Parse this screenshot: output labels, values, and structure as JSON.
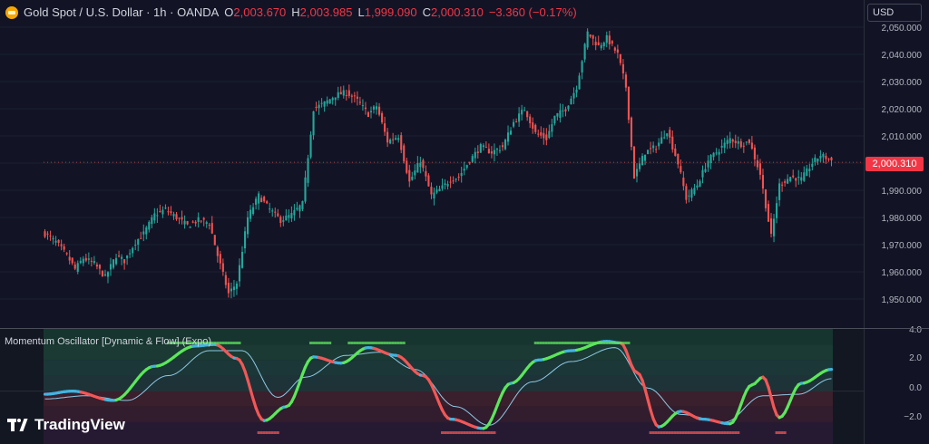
{
  "symbol": {
    "title": "Gold Spot / U.S. Dollar · 1h · OANDA",
    "icon": "gold-coin-icon",
    "ohlc": [
      {
        "k": "O",
        "v": "2,003.670"
      },
      {
        "k": "H",
        "v": "2,003.985"
      },
      {
        "k": "L",
        "v": "1,999.090"
      },
      {
        "k": "C",
        "v": "2,000.310"
      }
    ],
    "change": "−3.360 (−0.17%)"
  },
  "price_axis": {
    "currency": "USD",
    "ticks": [
      "2,050.000",
      "2,040.000",
      "2,030.000",
      "2,020.000",
      "2,010.000",
      "2,000.000",
      "1,990.000",
      "1,980.000",
      "1,970.000",
      "1,960.000",
      "1,950.000"
    ],
    "last_price": "2,000.310"
  },
  "oscillator": {
    "title": "Momentum Oscillator [Dynamic & Flow] (Expo)",
    "ticks": [
      "4.0",
      "2.0",
      "0.0",
      "−2.0"
    ]
  },
  "branding": {
    "name": "TradingView"
  },
  "colors": {
    "up": "#26a69a",
    "down": "#ef5350",
    "osc_up": "#5ce65c",
    "osc_down": "#f25757",
    "osc_mid": "#42b4e0"
  },
  "chart_data": {
    "type": "candlestick",
    "ylim": [
      1945,
      2052
    ],
    "ticks": [
      2050,
      2040,
      2030,
      2020,
      2010,
      2000,
      1990,
      1980,
      1970,
      1960,
      1950
    ],
    "path": [
      [
        0,
        1974
      ],
      [
        4,
        1971
      ],
      [
        8,
        1966
      ],
      [
        11,
        1961
      ],
      [
        14,
        1965
      ],
      [
        18,
        1963
      ],
      [
        22,
        1958
      ],
      [
        26,
        1966
      ],
      [
        29,
        1964
      ],
      [
        33,
        1971
      ],
      [
        36,
        1974
      ],
      [
        40,
        1981
      ],
      [
        44,
        1983
      ],
      [
        48,
        1980
      ],
      [
        52,
        1977
      ],
      [
        56,
        1979
      ],
      [
        60,
        1978
      ],
      [
        63,
        1966
      ],
      [
        67,
        1952
      ],
      [
        70,
        1956
      ],
      [
        74,
        1980
      ],
      [
        78,
        1988
      ],
      [
        82,
        1983
      ],
      [
        86,
        1979
      ],
      [
        90,
        1981
      ],
      [
        94,
        1985
      ],
      [
        98,
        2020
      ],
      [
        102,
        2022
      ],
      [
        106,
        2025
      ],
      [
        110,
        2026
      ],
      [
        114,
        2023
      ],
      [
        118,
        2018
      ],
      [
        121,
        2021
      ],
      [
        125,
        2008
      ],
      [
        129,
        2010
      ],
      [
        133,
        1993
      ],
      [
        137,
        2001
      ],
      [
        141,
        1988
      ],
      [
        145,
        1991
      ],
      [
        148,
        1994
      ],
      [
        151,
        1995
      ],
      [
        155,
        2001
      ],
      [
        159,
        2006
      ],
      [
        163,
        2004
      ],
      [
        167,
        2006
      ],
      [
        171,
        2015
      ],
      [
        175,
        2020
      ],
      [
        179,
        2011
      ],
      [
        183,
        2009
      ],
      [
        186,
        2017
      ],
      [
        190,
        2020
      ],
      [
        194,
        2028
      ],
      [
        198,
        2048
      ],
      [
        202,
        2043
      ],
      [
        205,
        2046
      ],
      [
        209,
        2040
      ],
      [
        212,
        2028
      ],
      [
        215,
        1995
      ],
      [
        219,
        2004
      ],
      [
        223,
        2006
      ],
      [
        227,
        2012
      ],
      [
        231,
        2000
      ],
      [
        234,
        1987
      ],
      [
        238,
        1992
      ],
      [
        242,
        2001
      ],
      [
        246,
        2005
      ],
      [
        250,
        2009
      ],
      [
        254,
        2007
      ],
      [
        257,
        2008
      ],
      [
        261,
        1996
      ],
      [
        265,
        1973
      ],
      [
        268,
        1992
      ],
      [
        272,
        1995
      ],
      [
        276,
        1994
      ],
      [
        280,
        2000
      ],
      [
        283,
        2003
      ],
      [
        287,
        2001
      ]
    ],
    "oscillator": {
      "ylim": [
        -3.4,
        4.0
      ],
      "ticks": [
        4.0,
        2.0,
        0.0,
        -2.0
      ],
      "fast": [
        [
          0,
          -0.2
        ],
        [
          10,
          0.0
        ],
        [
          25,
          -0.6
        ],
        [
          40,
          1.6
        ],
        [
          55,
          2.9
        ],
        [
          62,
          3.0
        ],
        [
          70,
          2.1
        ],
        [
          80,
          -1.9
        ],
        [
          88,
          -1.0
        ],
        [
          98,
          2.2
        ],
        [
          108,
          1.8
        ],
        [
          118,
          2.8
        ],
        [
          128,
          2.3
        ],
        [
          138,
          1.0
        ],
        [
          148,
          -1.8
        ],
        [
          160,
          -2.4
        ],
        [
          170,
          0.5
        ],
        [
          180,
          2.0
        ],
        [
          192,
          2.6
        ],
        [
          205,
          3.2
        ],
        [
          210,
          3.1
        ],
        [
          216,
          1.2
        ],
        [
          224,
          -2.3
        ],
        [
          232,
          -1.3
        ],
        [
          240,
          -1.8
        ],
        [
          250,
          -2.1
        ],
        [
          258,
          0.4
        ],
        [
          262,
          0.9
        ],
        [
          268,
          -1.7
        ],
        [
          276,
          0.5
        ],
        [
          287,
          1.4
        ]
      ],
      "slow": [
        [
          0,
          -0.5
        ],
        [
          15,
          -0.3
        ],
        [
          30,
          -0.6
        ],
        [
          45,
          1.0
        ],
        [
          60,
          2.6
        ],
        [
          72,
          2.6
        ],
        [
          85,
          -0.4
        ],
        [
          95,
          0.9
        ],
        [
          110,
          2.3
        ],
        [
          122,
          2.5
        ],
        [
          135,
          1.4
        ],
        [
          150,
          -1.0
        ],
        [
          162,
          -2.2
        ],
        [
          178,
          0.6
        ],
        [
          192,
          1.9
        ],
        [
          208,
          2.8
        ],
        [
          220,
          0.2
        ],
        [
          232,
          -1.5
        ],
        [
          248,
          -2.0
        ],
        [
          262,
          -0.3
        ],
        [
          275,
          -0.2
        ],
        [
          287,
          0.8
        ]
      ]
    }
  }
}
